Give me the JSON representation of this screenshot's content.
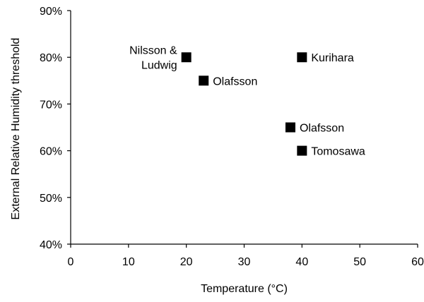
{
  "chart_data": {
    "type": "scatter",
    "xlabel": "Temperature (°C)",
    "ylabel": "External Relative Humidity threshold",
    "xlim": [
      0,
      60
    ],
    "ylim": [
      40,
      90
    ],
    "x_ticks": [
      0,
      10,
      20,
      30,
      40,
      50,
      60
    ],
    "x_tick_labels": [
      "0",
      "10",
      "20",
      "30",
      "40",
      "50",
      "60"
    ],
    "y_ticks": [
      40,
      50,
      60,
      70,
      80,
      90
    ],
    "y_tick_labels": [
      "40%",
      "50%",
      "60%",
      "70%",
      "80%",
      "90%"
    ],
    "grid": false,
    "legend": "none",
    "marker": "square",
    "marker_color": "#000000",
    "points": [
      {
        "x": 20,
        "y": 80,
        "label_lines": [
          "Nilsson &",
          "Ludwig"
        ],
        "label_side": "left"
      },
      {
        "x": 23,
        "y": 75,
        "label_lines": [
          "Olafsson"
        ],
        "label_side": "right"
      },
      {
        "x": 40,
        "y": 80,
        "label_lines": [
          "Kurihara"
        ],
        "label_side": "right"
      },
      {
        "x": 38,
        "y": 65,
        "label_lines": [
          "Olafsson"
        ],
        "label_side": "right"
      },
      {
        "x": 40,
        "y": 60,
        "label_lines": [
          "Tomosawa"
        ],
        "label_side": "right"
      }
    ]
  }
}
